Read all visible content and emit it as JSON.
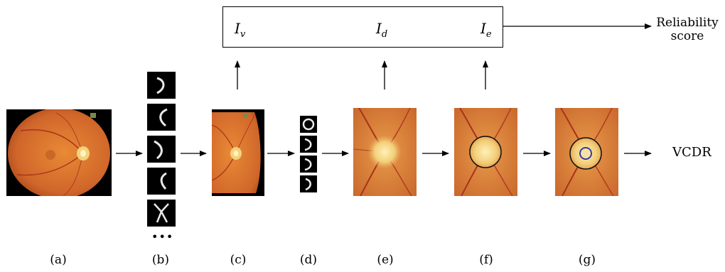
{
  "top_box": {
    "v_sym": "I",
    "v_sub": "v",
    "d_sym": "I",
    "d_sub": "d",
    "e_sym": "I",
    "e_sub": "e"
  },
  "output": {
    "reliability_line1": "Reliability",
    "reliability_line2": "score",
    "vcdr": "VCDR"
  },
  "ellipsis": "•••",
  "panel_labels": [
    "(a)",
    "(b)",
    "(c)",
    "(d)",
    "(e)",
    "(f)",
    "(g)"
  ],
  "colors": {
    "retina_orange": "#d9742a",
    "disc_yellow": "#f3d27a",
    "vessel_red": "#a8321c",
    "cup_blue": "#3a3aa8"
  }
}
